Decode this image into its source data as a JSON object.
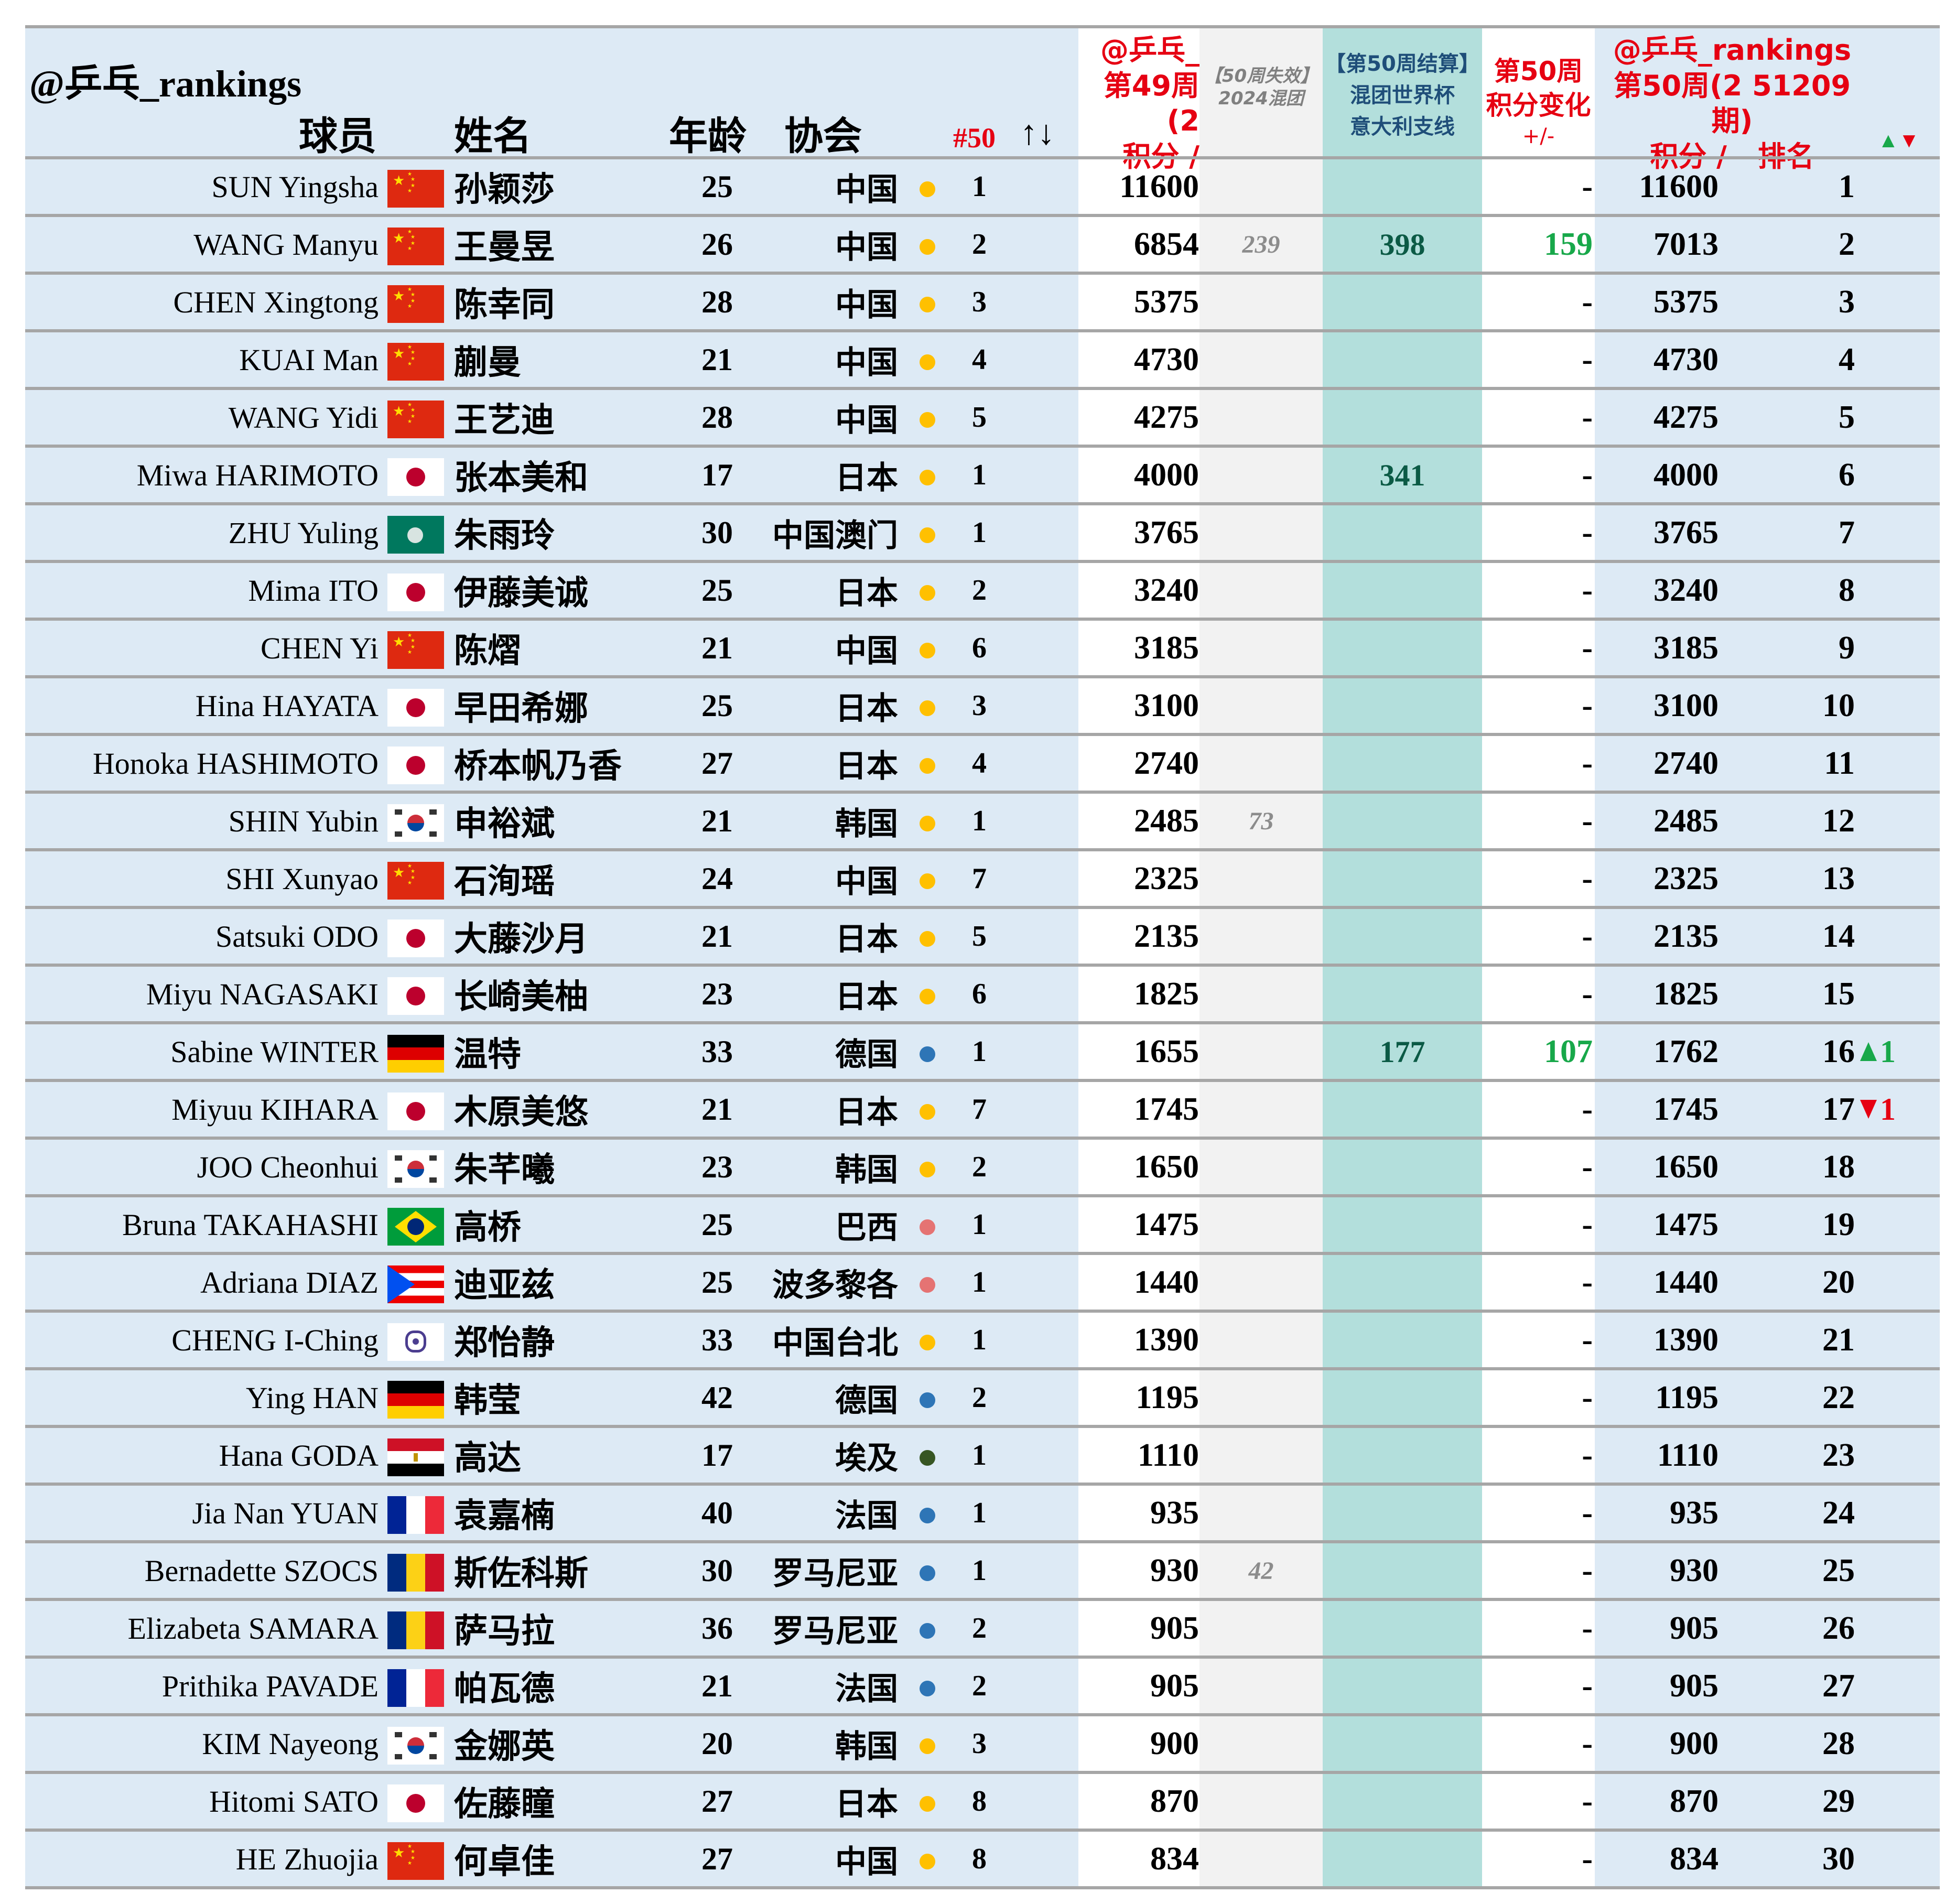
{
  "header": {
    "brand": "@乒乓_rankings",
    "col_player": "球员",
    "col_name": "姓名",
    "col_age": "年龄",
    "col_assoc": "协会",
    "col_nat_rank": "#50",
    "col_nat_rank_arrows": "↑↓",
    "week49": {
      "line1": "@乒乓_",
      "line2": "第49周(2",
      "line3": "积分 /"
    },
    "expire": {
      "line1": "【50周失效】",
      "line2": "2024混团"
    },
    "mixed": {
      "line1": "【第50周结算】",
      "line2": "混团世界杯",
      "line3": "意大利支线"
    },
    "change": {
      "line1": "第50周",
      "line2": "积分变化",
      "line3": "+/-"
    },
    "week50": {
      "line1": "@乒乓_rankings",
      "line2": "第50周(2 51209期)",
      "line3a": "积分 /",
      "line3b": "排名",
      "legend_up": "▲",
      "legend_down": "▼"
    }
  },
  "colors": {
    "row_bg": "#ddeaf5",
    "col_week49_bg": "#ffffff",
    "col_expire_bg": "#f2f2f2",
    "col_mixed_bg": "#b3dfdc",
    "col_change_bg": "#ffffff",
    "header_red": "#e60012",
    "header_navy": "#1f4e79",
    "positive_green": "#18a84a",
    "dot_asia": "#ffc000",
    "dot_europe": "#2e75b6",
    "dot_americas": "#e57373",
    "dot_africa": "#375623"
  },
  "rows": [
    {
      "en": "SUN Yingsha",
      "flag": "cn",
      "cn": "孙颖莎",
      "age": "25",
      "assoc": "中国",
      "dot": "asia",
      "nrank": "1",
      "pts49": "11600",
      "expire": "",
      "mixed": "",
      "change": "-",
      "change_pos": false,
      "pts50": "11600",
      "rank50": "1",
      "move": "",
      "move_dir": ""
    },
    {
      "en": "WANG Manyu",
      "flag": "cn",
      "cn": "王曼昱",
      "age": "26",
      "assoc": "中国",
      "dot": "asia",
      "nrank": "2",
      "pts49": "6854",
      "expire": "239",
      "mixed": "398",
      "change": "159",
      "change_pos": true,
      "pts50": "7013",
      "rank50": "2",
      "move": "",
      "move_dir": ""
    },
    {
      "en": "CHEN Xingtong",
      "flag": "cn",
      "cn": "陈幸同",
      "age": "28",
      "assoc": "中国",
      "dot": "asia",
      "nrank": "3",
      "pts49": "5375",
      "expire": "",
      "mixed": "",
      "change": "-",
      "change_pos": false,
      "pts50": "5375",
      "rank50": "3",
      "move": "",
      "move_dir": ""
    },
    {
      "en": "KUAI Man",
      "flag": "cn",
      "cn": "蒯曼",
      "age": "21",
      "assoc": "中国",
      "dot": "asia",
      "nrank": "4",
      "pts49": "4730",
      "expire": "",
      "mixed": "",
      "change": "-",
      "change_pos": false,
      "pts50": "4730",
      "rank50": "4",
      "move": "",
      "move_dir": ""
    },
    {
      "en": "WANG Yidi",
      "flag": "cn",
      "cn": "王艺迪",
      "age": "28",
      "assoc": "中国",
      "dot": "asia",
      "nrank": "5",
      "pts49": "4275",
      "expire": "",
      "mixed": "",
      "change": "-",
      "change_pos": false,
      "pts50": "4275",
      "rank50": "5",
      "move": "",
      "move_dir": ""
    },
    {
      "en": "Miwa HARIMOTO",
      "flag": "jp",
      "cn": "张本美和",
      "age": "17",
      "assoc": "日本",
      "dot": "asia",
      "nrank": "1",
      "pts49": "4000",
      "expire": "",
      "mixed": "341",
      "change": "-",
      "change_pos": false,
      "pts50": "4000",
      "rank50": "6",
      "move": "",
      "move_dir": ""
    },
    {
      "en": "ZHU Yuling",
      "flag": "mo",
      "cn": "朱雨玲",
      "age": "30",
      "assoc": "中国澳门",
      "dot": "asia",
      "nrank": "1",
      "pts49": "3765",
      "expire": "",
      "mixed": "",
      "change": "-",
      "change_pos": false,
      "pts50": "3765",
      "rank50": "7",
      "move": "",
      "move_dir": ""
    },
    {
      "en": "Mima ITO",
      "flag": "jp",
      "cn": "伊藤美诚",
      "age": "25",
      "assoc": "日本",
      "dot": "asia",
      "nrank": "2",
      "pts49": "3240",
      "expire": "",
      "mixed": "",
      "change": "-",
      "change_pos": false,
      "pts50": "3240",
      "rank50": "8",
      "move": "",
      "move_dir": ""
    },
    {
      "en": "CHEN Yi",
      "flag": "cn",
      "cn": "陈熠",
      "age": "21",
      "assoc": "中国",
      "dot": "asia",
      "nrank": "6",
      "pts49": "3185",
      "expire": "",
      "mixed": "",
      "change": "-",
      "change_pos": false,
      "pts50": "3185",
      "rank50": "9",
      "move": "",
      "move_dir": ""
    },
    {
      "en": "Hina HAYATA",
      "flag": "jp",
      "cn": "早田希娜",
      "age": "25",
      "assoc": "日本",
      "dot": "asia",
      "nrank": "3",
      "pts49": "3100",
      "expire": "",
      "mixed": "",
      "change": "-",
      "change_pos": false,
      "pts50": "3100",
      "rank50": "10",
      "move": "",
      "move_dir": ""
    },
    {
      "en": "Honoka HASHIMOTO",
      "flag": "jp",
      "cn": "桥本帆乃香",
      "age": "27",
      "assoc": "日本",
      "dot": "asia",
      "nrank": "4",
      "pts49": "2740",
      "expire": "",
      "mixed": "",
      "change": "-",
      "change_pos": false,
      "pts50": "2740",
      "rank50": "11",
      "move": "",
      "move_dir": ""
    },
    {
      "en": "SHIN Yubin",
      "flag": "kr",
      "cn": "申裕斌",
      "age": "21",
      "assoc": "韩国",
      "dot": "asia",
      "nrank": "1",
      "pts49": "2485",
      "expire": "73",
      "mixed": "",
      "change": "-",
      "change_pos": false,
      "pts50": "2485",
      "rank50": "12",
      "move": "",
      "move_dir": ""
    },
    {
      "en": "SHI Xunyao",
      "flag": "cn",
      "cn": "石洵瑶",
      "age": "24",
      "assoc": "中国",
      "dot": "asia",
      "nrank": "7",
      "pts49": "2325",
      "expire": "",
      "mixed": "",
      "change": "-",
      "change_pos": false,
      "pts50": "2325",
      "rank50": "13",
      "move": "",
      "move_dir": ""
    },
    {
      "en": "Satsuki ODO",
      "flag": "jp",
      "cn": "大藤沙月",
      "age": "21",
      "assoc": "日本",
      "dot": "asia",
      "nrank": "5",
      "pts49": "2135",
      "expire": "",
      "mixed": "",
      "change": "-",
      "change_pos": false,
      "pts50": "2135",
      "rank50": "14",
      "move": "",
      "move_dir": ""
    },
    {
      "en": "Miyu NAGASAKI",
      "flag": "jp",
      "cn": "长崎美柚",
      "age": "23",
      "assoc": "日本",
      "dot": "asia",
      "nrank": "6",
      "pts49": "1825",
      "expire": "",
      "mixed": "",
      "change": "-",
      "change_pos": false,
      "pts50": "1825",
      "rank50": "15",
      "move": "",
      "move_dir": ""
    },
    {
      "en": "Sabine WINTER",
      "flag": "de",
      "cn": "温特",
      "age": "33",
      "assoc": "德国",
      "dot": "europe",
      "nrank": "1",
      "pts49": "1655",
      "expire": "",
      "mixed": "177",
      "change": "107",
      "change_pos": true,
      "pts50": "1762",
      "rank50": "16",
      "move": "1",
      "move_dir": "up"
    },
    {
      "en": "Miyuu KIHARA",
      "flag": "jp",
      "cn": "木原美悠",
      "age": "21",
      "assoc": "日本",
      "dot": "asia",
      "nrank": "7",
      "pts49": "1745",
      "expire": "",
      "mixed": "",
      "change": "-",
      "change_pos": false,
      "pts50": "1745",
      "rank50": "17",
      "move": "1",
      "move_dir": "down"
    },
    {
      "en": "JOO Cheonhui",
      "flag": "kr",
      "cn": "朱芊曦",
      "age": "23",
      "assoc": "韩国",
      "dot": "asia",
      "nrank": "2",
      "pts49": "1650",
      "expire": "",
      "mixed": "",
      "change": "-",
      "change_pos": false,
      "pts50": "1650",
      "rank50": "18",
      "move": "",
      "move_dir": ""
    },
    {
      "en": "Bruna TAKAHASHI",
      "flag": "br",
      "cn": "高桥",
      "age": "25",
      "assoc": "巴西",
      "dot": "americas",
      "nrank": "1",
      "pts49": "1475",
      "expire": "",
      "mixed": "",
      "change": "-",
      "change_pos": false,
      "pts50": "1475",
      "rank50": "19",
      "move": "",
      "move_dir": ""
    },
    {
      "en": "Adriana DIAZ",
      "flag": "pr",
      "cn": "迪亚兹",
      "age": "25",
      "assoc": "波多黎各",
      "dot": "americas",
      "nrank": "1",
      "pts49": "1440",
      "expire": "",
      "mixed": "",
      "change": "-",
      "change_pos": false,
      "pts50": "1440",
      "rank50": "20",
      "move": "",
      "move_dir": ""
    },
    {
      "en": "CHENG I-Ching",
      "flag": "tpe",
      "cn": "郑怡静",
      "age": "33",
      "assoc": "中国台北",
      "dot": "asia",
      "nrank": "1",
      "pts49": "1390",
      "expire": "",
      "mixed": "",
      "change": "-",
      "change_pos": false,
      "pts50": "1390",
      "rank50": "21",
      "move": "",
      "move_dir": ""
    },
    {
      "en": "Ying HAN",
      "flag": "de",
      "cn": "韩莹",
      "age": "42",
      "assoc": "德国",
      "dot": "europe",
      "nrank": "2",
      "pts49": "1195",
      "expire": "",
      "mixed": "",
      "change": "-",
      "change_pos": false,
      "pts50": "1195",
      "rank50": "22",
      "move": "",
      "move_dir": ""
    },
    {
      "en": "Hana GODA",
      "flag": "eg",
      "cn": "高达",
      "age": "17",
      "assoc": "埃及",
      "dot": "africa",
      "nrank": "1",
      "pts49": "1110",
      "expire": "",
      "mixed": "",
      "change": "-",
      "change_pos": false,
      "pts50": "1110",
      "rank50": "23",
      "move": "",
      "move_dir": ""
    },
    {
      "en": "Jia Nan YUAN",
      "flag": "fr",
      "cn": "袁嘉楠",
      "age": "40",
      "assoc": "法国",
      "dot": "europe",
      "nrank": "1",
      "pts49": "935",
      "expire": "",
      "mixed": "",
      "change": "-",
      "change_pos": false,
      "pts50": "935",
      "rank50": "24",
      "move": "",
      "move_dir": ""
    },
    {
      "en": "Bernadette SZOCS",
      "flag": "ro",
      "cn": "斯佐科斯",
      "age": "30",
      "assoc": "罗马尼亚",
      "dot": "europe",
      "nrank": "1",
      "pts49": "930",
      "expire": "42",
      "mixed": "",
      "change": "-",
      "change_pos": false,
      "pts50": "930",
      "rank50": "25",
      "move": "",
      "move_dir": ""
    },
    {
      "en": "Elizabeta SAMARA",
      "flag": "ro",
      "cn": "萨马拉",
      "age": "36",
      "assoc": "罗马尼亚",
      "dot": "europe",
      "nrank": "2",
      "pts49": "905",
      "expire": "",
      "mixed": "",
      "change": "-",
      "change_pos": false,
      "pts50": "905",
      "rank50": "26",
      "move": "",
      "move_dir": ""
    },
    {
      "en": "Prithika PAVADE",
      "flag": "fr",
      "cn": "帕瓦德",
      "age": "21",
      "assoc": "法国",
      "dot": "europe",
      "nrank": "2",
      "pts49": "905",
      "expire": "",
      "mixed": "",
      "change": "-",
      "change_pos": false,
      "pts50": "905",
      "rank50": "27",
      "move": "",
      "move_dir": ""
    },
    {
      "en": "KIM Nayeong",
      "flag": "kr",
      "cn": "金娜英",
      "age": "20",
      "assoc": "韩国",
      "dot": "asia",
      "nrank": "3",
      "pts49": "900",
      "expire": "",
      "mixed": "",
      "change": "-",
      "change_pos": false,
      "pts50": "900",
      "rank50": "28",
      "move": "",
      "move_dir": ""
    },
    {
      "en": "Hitomi SATO",
      "flag": "jp",
      "cn": "佐藤瞳",
      "age": "27",
      "assoc": "日本",
      "dot": "asia",
      "nrank": "8",
      "pts49": "870",
      "expire": "",
      "mixed": "",
      "change": "-",
      "change_pos": false,
      "pts50": "870",
      "rank50": "29",
      "move": "",
      "move_dir": ""
    },
    {
      "en": "HE Zhuojia",
      "flag": "cn",
      "cn": "何卓佳",
      "age": "27",
      "assoc": "中国",
      "dot": "asia",
      "nrank": "8",
      "pts49": "834",
      "expire": "",
      "mixed": "",
      "change": "-",
      "change_pos": false,
      "pts50": "834",
      "rank50": "30",
      "move": "",
      "move_dir": ""
    }
  ]
}
